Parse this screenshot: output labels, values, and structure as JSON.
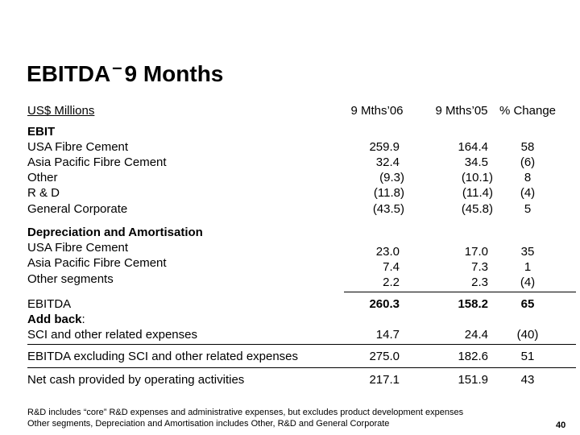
{
  "title": {
    "part1": "EBITDA",
    "dash": "–",
    "part2": "9 Months"
  },
  "header": {
    "units": "US$ Millions",
    "col1": "9 Mths’06",
    "col2": "9 Mths’05",
    "col3": "% Change"
  },
  "ebit": {
    "heading": "EBIT",
    "rows": [
      {
        "label": "USA Fibre Cement",
        "v06": "259.9",
        "v05": "164.4",
        "chg": "58"
      },
      {
        "label": "Asia Pacific Fibre Cement",
        "v06": "32.4",
        "v05": "34.5",
        "chg": "(6)"
      },
      {
        "label": "Other",
        "v06": "(9.3)",
        "v05": "(10.1)",
        "chg": "8"
      },
      {
        "label": "R & D",
        "v06": "(11.8)",
        "v05": "(11.4)",
        "chg": "(4)"
      },
      {
        "label": "General Corporate",
        "v06": "(43.5)",
        "v05": "(45.8)",
        "chg": "5"
      }
    ]
  },
  "da": {
    "heading": "Depreciation and Amortisation",
    "rows": [
      {
        "label": "USA Fibre Cement",
        "v06": "23.0",
        "v05": "17.0",
        "chg": "35"
      },
      {
        "label": "Asia Pacific Fibre Cement",
        "v06": "7.4",
        "v05": "7.3",
        "chg": "1"
      },
      {
        "label": "Other segments",
        "v06": "2.2",
        "v05": "2.3",
        "chg": "(4)"
      }
    ]
  },
  "ebitda": {
    "label": "EBITDA",
    "v06": "260.3",
    "v05": "158.2",
    "chg": "65"
  },
  "addback": {
    "heading": "Add back",
    "colon": ":",
    "row": {
      "label": "SCI and other related expenses",
      "v06": "14.7",
      "v05": "24.4",
      "chg": "(40)"
    }
  },
  "ebitda_ex": {
    "label": "EBITDA excluding SCI and other related expenses",
    "v06": "275.0",
    "v05": "182.6",
    "chg": "51"
  },
  "netcash": {
    "label": "Net cash provided by operating activities",
    "v06": "217.1",
    "v05": "151.9",
    "chg": "43"
  },
  "footnotes": [
    "R&D includes “core” R&D expenses and administrative expenses, but excludes product development expenses",
    "Other segments, Depreciation and Amortisation includes Other, R&D and General Corporate"
  ],
  "page_number": "40"
}
